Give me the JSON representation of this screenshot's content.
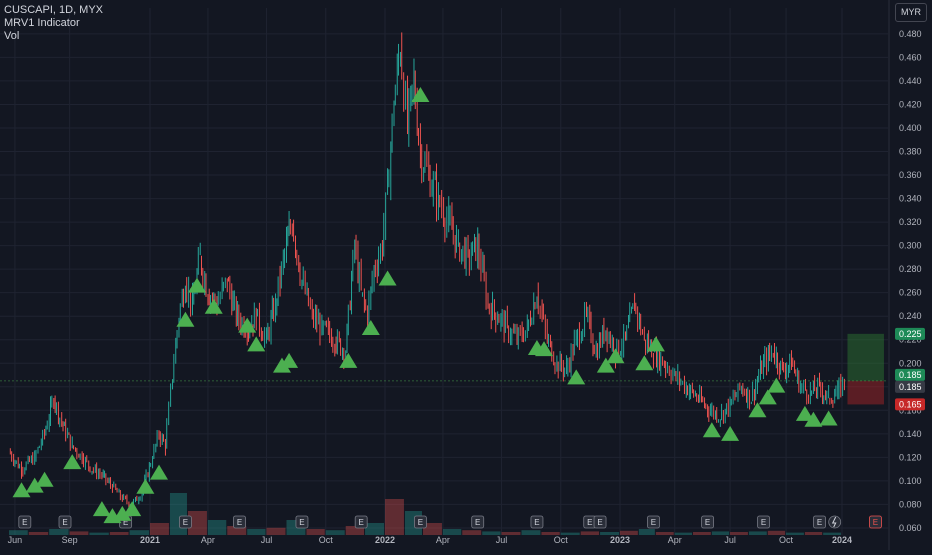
{
  "legend": {
    "symbol": "CUSCAPI, 1D, MYX",
    "indicator": "MRV1 Indicator",
    "volume": "Vol"
  },
  "currency_button": "MYR",
  "colors": {
    "background": "#131722",
    "grid": "#1f2331",
    "up": "#26a69a",
    "down": "#ef5350",
    "signal": "#4caf50",
    "axis_text": "#b2b5be",
    "price_tag_green": "#1e8a57",
    "price_tag_gray": "#363a45",
    "price_tag_red": "#c62828"
  },
  "chart_data": {
    "type": "candlestick",
    "y_axis": {
      "ticks": [
        "0.060",
        "0.080",
        "0.100",
        "0.120",
        "0.140",
        "0.160",
        "0.180",
        "0.200",
        "0.220",
        "0.240",
        "0.260",
        "0.280",
        "0.300",
        "0.320",
        "0.340",
        "0.360",
        "0.380",
        "0.400",
        "0.420",
        "0.440",
        "0.460",
        "0.480"
      ],
      "ylim": [
        0.054,
        0.502
      ]
    },
    "x_axis": {
      "ticks": [
        "Jun",
        "Sep",
        "2021",
        "Apr",
        "Jul",
        "Oct",
        "2022",
        "Apr",
        "Jul",
        "Oct",
        "2023",
        "Apr",
        "Jul",
        "Oct",
        "2024"
      ]
    },
    "price_series": [
      [
        "2020-06-01",
        0.125
      ],
      [
        "2020-06-20",
        0.11
      ],
      [
        "2020-07-10",
        0.12
      ],
      [
        "2020-07-25",
        0.14
      ],
      [
        "2020-08-08",
        0.17
      ],
      [
        "2020-08-20",
        0.15
      ],
      [
        "2020-09-05",
        0.13
      ],
      [
        "2020-09-20",
        0.12
      ],
      [
        "2020-10-05",
        0.11
      ],
      [
        "2020-10-20",
        0.105
      ],
      [
        "2020-11-05",
        0.095
      ],
      [
        "2020-11-20",
        0.085
      ],
      [
        "2020-12-05",
        0.08
      ],
      [
        "2020-12-20",
        0.09
      ],
      [
        "2021-01-05",
        0.12
      ],
      [
        "2021-01-15",
        0.14
      ],
      [
        "2021-01-25",
        0.13
      ],
      [
        "2021-02-05",
        0.19
      ],
      [
        "2021-02-15",
        0.24
      ],
      [
        "2021-02-25",
        0.27
      ],
      [
        "2021-03-08",
        0.25
      ],
      [
        "2021-03-20",
        0.29
      ],
      [
        "2021-04-01",
        0.26
      ],
      [
        "2021-04-15",
        0.25
      ],
      [
        "2021-05-01",
        0.27
      ],
      [
        "2021-05-15",
        0.24
      ],
      [
        "2021-06-01",
        0.23
      ],
      [
        "2021-06-15",
        0.24
      ],
      [
        "2021-07-01",
        0.22
      ],
      [
        "2021-07-15",
        0.25
      ],
      [
        "2021-08-01",
        0.3
      ],
      [
        "2021-08-10",
        0.32
      ],
      [
        "2021-08-25",
        0.27
      ],
      [
        "2021-09-10",
        0.24
      ],
      [
        "2021-09-25",
        0.23
      ],
      [
        "2021-10-15",
        0.22
      ],
      [
        "2021-11-01",
        0.21
      ],
      [
        "2021-11-15",
        0.3
      ],
      [
        "2021-11-25",
        0.26
      ],
      [
        "2021-12-05",
        0.24
      ],
      [
        "2021-12-15",
        0.28
      ],
      [
        "2021-12-28",
        0.3
      ],
      [
        "2022-01-05",
        0.35
      ],
      [
        "2022-01-15",
        0.42
      ],
      [
        "2022-01-25",
        0.47
      ],
      [
        "2022-02-05",
        0.4
      ],
      [
        "2022-02-15",
        0.44
      ],
      [
        "2022-02-25",
        0.38
      ],
      [
        "2022-03-10",
        0.36
      ],
      [
        "2022-03-25",
        0.34
      ],
      [
        "2022-04-10",
        0.32
      ],
      [
        "2022-04-25",
        0.3
      ],
      [
        "2022-05-10",
        0.29
      ],
      [
        "2022-05-25",
        0.3
      ],
      [
        "2022-06-10",
        0.25
      ],
      [
        "2022-06-25",
        0.24
      ],
      [
        "2022-07-10",
        0.23
      ],
      [
        "2022-07-25",
        0.22
      ],
      [
        "2022-08-10",
        0.23
      ],
      [
        "2022-08-25",
        0.26
      ],
      [
        "2022-09-10",
        0.22
      ],
      [
        "2022-09-25",
        0.2
      ],
      [
        "2022-10-10",
        0.195
      ],
      [
        "2022-10-25",
        0.22
      ],
      [
        "2022-11-10",
        0.24
      ],
      [
        "2022-11-25",
        0.21
      ],
      [
        "2022-12-10",
        0.23
      ],
      [
        "2022-12-25",
        0.21
      ],
      [
        "2023-01-10",
        0.22
      ],
      [
        "2023-01-25",
        0.25
      ],
      [
        "2023-02-10",
        0.22
      ],
      [
        "2023-02-25",
        0.21
      ],
      [
        "2023-03-15",
        0.2
      ],
      [
        "2023-04-01",
        0.19
      ],
      [
        "2023-04-20",
        0.18
      ],
      [
        "2023-05-10",
        0.17
      ],
      [
        "2023-05-30",
        0.16
      ],
      [
        "2023-06-15",
        0.155
      ],
      [
        "2023-07-01",
        0.165
      ],
      [
        "2023-07-20",
        0.18
      ],
      [
        "2023-08-05",
        0.17
      ],
      [
        "2023-08-25",
        0.2
      ],
      [
        "2023-09-10",
        0.21
      ],
      [
        "2023-09-25",
        0.195
      ],
      [
        "2023-10-10",
        0.2
      ],
      [
        "2023-10-25",
        0.18
      ],
      [
        "2023-11-10",
        0.175
      ],
      [
        "2023-11-25",
        0.18
      ],
      [
        "2023-12-10",
        0.17
      ],
      [
        "2023-12-25",
        0.175
      ],
      [
        "2024-01-05",
        0.185
      ]
    ],
    "signals": [
      [
        "2020-06-20",
        0.092
      ],
      [
        "2020-07-10",
        0.096
      ],
      [
        "2020-07-25",
        0.101
      ],
      [
        "2020-09-05",
        0.116
      ],
      [
        "2020-10-20",
        0.076
      ],
      [
        "2020-11-05",
        0.07
      ],
      [
        "2020-11-20",
        0.072
      ],
      [
        "2020-12-05",
        0.076
      ],
      [
        "2020-12-25",
        0.095
      ],
      [
        "2021-01-15",
        0.107
      ],
      [
        "2021-02-25",
        0.237
      ],
      [
        "2021-03-15",
        0.266
      ],
      [
        "2021-04-10",
        0.248
      ],
      [
        "2021-06-01",
        0.232
      ],
      [
        "2021-06-15",
        0.216
      ],
      [
        "2021-07-25",
        0.198
      ],
      [
        "2021-08-05",
        0.202
      ],
      [
        "2021-11-05",
        0.202
      ],
      [
        "2021-12-10",
        0.23
      ],
      [
        "2022-01-05",
        0.272
      ],
      [
        "2022-02-25",
        0.428
      ],
      [
        "2022-08-25",
        0.213
      ],
      [
        "2022-09-05",
        0.212
      ],
      [
        "2022-10-25",
        0.188
      ],
      [
        "2022-12-10",
        0.198
      ],
      [
        "2022-12-25",
        0.206
      ],
      [
        "2023-02-10",
        0.2
      ],
      [
        "2023-03-01",
        0.216
      ],
      [
        "2023-06-01",
        0.143
      ],
      [
        "2023-07-01",
        0.14
      ],
      [
        "2023-08-15",
        0.16
      ],
      [
        "2023-09-01",
        0.171
      ],
      [
        "2023-09-15",
        0.181
      ],
      [
        "2023-11-01",
        0.157
      ],
      [
        "2023-11-15",
        0.152
      ],
      [
        "2023-12-10",
        0.153
      ]
    ],
    "volume": [
      [
        "2020-06-01",
        0.08
      ],
      [
        "2020-07-01",
        0.05
      ],
      [
        "2020-08-01",
        0.1
      ],
      [
        "2020-09-01",
        0.06
      ],
      [
        "2020-10-01",
        0.04
      ],
      [
        "2020-11-01",
        0.05
      ],
      [
        "2020-12-01",
        0.08
      ],
      [
        "2021-01-01",
        0.2
      ],
      [
        "2021-02-01",
        0.7
      ],
      [
        "2021-03-01",
        0.4
      ],
      [
        "2021-04-01",
        0.25
      ],
      [
        "2021-05-01",
        0.15
      ],
      [
        "2021-06-01",
        0.1
      ],
      [
        "2021-07-01",
        0.12
      ],
      [
        "2021-08-01",
        0.25
      ],
      [
        "2021-09-01",
        0.1
      ],
      [
        "2021-10-01",
        0.08
      ],
      [
        "2021-11-01",
        0.15
      ],
      [
        "2021-12-01",
        0.2
      ],
      [
        "2022-01-01",
        0.6
      ],
      [
        "2022-02-01",
        0.4
      ],
      [
        "2022-03-01",
        0.2
      ],
      [
        "2022-04-01",
        0.1
      ],
      [
        "2022-05-01",
        0.08
      ],
      [
        "2022-06-01",
        0.06
      ],
      [
        "2022-07-01",
        0.05
      ],
      [
        "2022-08-01",
        0.08
      ],
      [
        "2022-09-01",
        0.05
      ],
      [
        "2022-10-01",
        0.04
      ],
      [
        "2022-11-01",
        0.06
      ],
      [
        "2022-12-01",
        0.05
      ],
      [
        "2023-01-01",
        0.07
      ],
      [
        "2023-02-01",
        0.1
      ],
      [
        "2023-03-01",
        0.05
      ],
      [
        "2023-04-01",
        0.04
      ],
      [
        "2023-05-01",
        0.05
      ],
      [
        "2023-06-01",
        0.06
      ],
      [
        "2023-07-01",
        0.05
      ],
      [
        "2023-08-01",
        0.06
      ],
      [
        "2023-09-01",
        0.07
      ],
      [
        "2023-10-01",
        0.04
      ],
      [
        "2023-11-01",
        0.05
      ],
      [
        "2023-12-01",
        0.04
      ]
    ],
    "earnings_dates": [
      "2020-06-25",
      "2020-08-25",
      "2020-11-25",
      "2021-02-25",
      "2021-05-20",
      "2021-08-25",
      "2021-11-25",
      "2022-02-25",
      "2022-05-25",
      "2022-08-25",
      "2022-11-15",
      "2022-12-01",
      "2023-02-25",
      "2023-05-25",
      "2023-08-25",
      "2023-11-25"
    ],
    "price_labels": [
      {
        "value": 0.225,
        "text": "0.225",
        "kind": "green"
      },
      {
        "value": 0.185,
        "text": "0.185",
        "kind": "green"
      },
      {
        "value": 0.185,
        "text": "0.185",
        "kind": "gray"
      },
      {
        "value": 0.165,
        "text": "0.165",
        "kind": "red"
      }
    ],
    "position_box": {
      "start": "2024-01-10",
      "end": "2024-03-10",
      "entry": 0.185,
      "target": 0.225,
      "stop": 0.165
    }
  }
}
